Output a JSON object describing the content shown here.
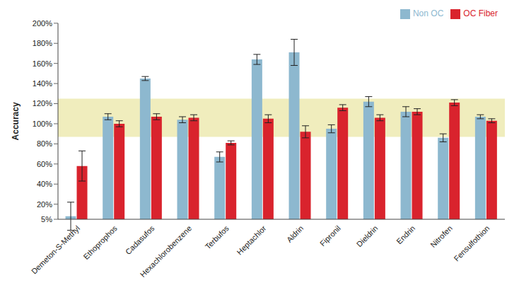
{
  "chart_data": {
    "type": "bar",
    "y_label": "Accuracy",
    "categories": [
      "Demeton-S-Methyl",
      "Ethoprophos",
      "Cadasufos",
      "Hexachlorobenzene",
      "Terbufos",
      "Heptachlor",
      "Aldrin",
      "Fipronil",
      "Dieldrin",
      "Endrin",
      "Nitrofen",
      "Fensulfothion"
    ],
    "series": [
      {
        "name": "Non OC",
        "color": "#8db8cf",
        "values": [
          8,
          107,
          145,
          104,
          67,
          164,
          171,
          95,
          122,
          112,
          86,
          107
        ],
        "errors": [
          14,
          3,
          2,
          3,
          5,
          5,
          13,
          4,
          5,
          5,
          4,
          2
        ]
      },
      {
        "name": "OC Fiber",
        "color": "#d9232d",
        "values": [
          58,
          100,
          107,
          106,
          81,
          105,
          92,
          116,
          106,
          112,
          121,
          103
        ],
        "errors": [
          15,
          3,
          3,
          3,
          2,
          4,
          6,
          3,
          3,
          3,
          3,
          2
        ]
      }
    ],
    "ylim": [
      5,
      200
    ],
    "yticks": [
      {
        "value": 5,
        "label": "5%"
      },
      {
        "value": 20,
        "label": "20%"
      },
      {
        "value": 40,
        "label": "40%"
      },
      {
        "value": 60,
        "label": "60%"
      },
      {
        "value": 80,
        "label": "80%"
      },
      {
        "value": 100,
        "label": "100%"
      },
      {
        "value": 120,
        "label": "120%"
      },
      {
        "value": 140,
        "label": "140%"
      },
      {
        "value": 160,
        "label": "160%"
      },
      {
        "value": 180,
        "label": "180%"
      },
      {
        "value": 200,
        "label": "200%"
      }
    ],
    "acceptance_band": [
      87,
      125
    ],
    "band_color": "#f0edbd",
    "grid": false,
    "legend": "top-right"
  }
}
